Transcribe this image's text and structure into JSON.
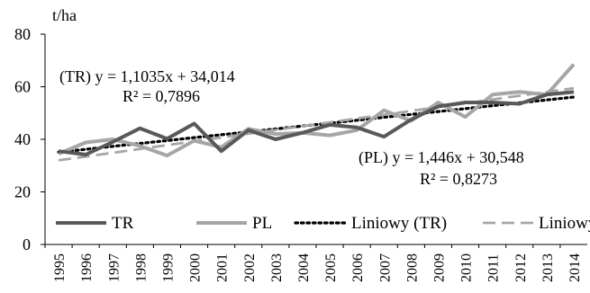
{
  "chart_data": {
    "type": "line",
    "ylabel": "t/ha",
    "ylim": [
      0,
      80
    ],
    "yticks": [
      0,
      20,
      40,
      60,
      80
    ],
    "grid": false,
    "legend_position": "bottom",
    "x": [
      "1995",
      "1996",
      "1997",
      "1998",
      "1999",
      "2000",
      "2001",
      "2002",
      "2003",
      "2004",
      "2005",
      "2006",
      "2007",
      "2008",
      "2009",
      "2010",
      "2011",
      "2012",
      "2013",
      "2014"
    ],
    "series": [
      {
        "name": "TR",
        "color": "#595959",
        "style": "solid",
        "values": [
          35.5,
          34.2,
          39.0,
          44.2,
          40.2,
          46.0,
          35.5,
          43.5,
          40.0,
          42.5,
          45.5,
          44.5,
          41.0,
          47.5,
          52.5,
          54.0,
          54.0,
          53.5,
          57.0,
          58.0
        ]
      },
      {
        "name": "PL",
        "color": "#a6a6a6",
        "style": "solid",
        "values": [
          34.5,
          38.8,
          40.0,
          37.5,
          33.8,
          39.5,
          37.0,
          44.0,
          42.0,
          42.5,
          41.5,
          43.5,
          51.0,
          47.0,
          54.0,
          48.5,
          57.0,
          58.0,
          57.0,
          68.5
        ]
      },
      {
        "name": "Liniowy (TR)",
        "color": "#000000",
        "style": "dotted",
        "trend_of": "TR",
        "slope": 1.1035,
        "intercept": 34.014
      },
      {
        "name": "Liniowy (PL)",
        "color": "#a6a6a6",
        "style": "dashed",
        "trend_of": "PL",
        "slope": 1.446,
        "intercept": 30.548
      }
    ],
    "annotations": [
      {
        "id": "tr-eq",
        "text": "(TR) y = 1,1035x + 34,014"
      },
      {
        "id": "tr-r2",
        "text": "R² = 0,7896"
      },
      {
        "id": "pl-eq",
        "text": "(PL) y  = 1,446x + 30,548"
      },
      {
        "id": "pl-r2",
        "text": "R² = 0,8273"
      }
    ]
  }
}
